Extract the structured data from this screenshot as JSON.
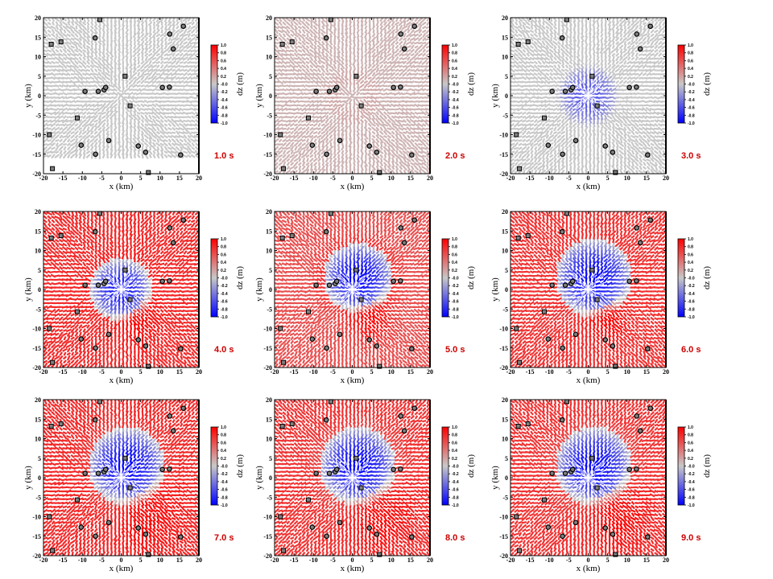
{
  "chart_data": {
    "type": "heatmap",
    "title": "",
    "description": "Snapshots of vertical ground displacement dz with horizontal displacement vectors at 9 time steps",
    "xlabel": "x (km)",
    "ylabel": "y (km)",
    "xlim": [
      -20,
      20
    ],
    "ylim": [
      -20,
      20
    ],
    "xticks": [
      "-20",
      "-15",
      "-10",
      "-5",
      "0",
      "5",
      "10",
      "15",
      "20"
    ],
    "yticks": [
      "20",
      "15",
      "10",
      "5",
      "0",
      "-5",
      "-10",
      "-15",
      "-20"
    ],
    "colorbar": {
      "label": "dz (m)",
      "range": [
        -1.0,
        1.0
      ],
      "ticks": [
        "1.0",
        "0.8",
        "0.6",
        "0.4",
        "0.2",
        "-0.0",
        "-0.2",
        "-0.4",
        "-0.6",
        "-0.8",
        "-1.0"
      ],
      "colors": {
        "max": "#ff0000",
        "mid": "#c8c8c8",
        "min": "#0000ff"
      }
    },
    "time_label_color": "#cc0000",
    "stations": {
      "squares": [
        [
          -5.5,
          19.5
        ],
        [
          -18.0,
          13.2
        ],
        [
          -15.5,
          13.8
        ],
        [
          1.0,
          5.0
        ],
        [
          2.3,
          -2.6
        ],
        [
          -11.3,
          -5.7
        ],
        [
          -18.5,
          -10.0
        ],
        [
          -17.7,
          -18.7
        ],
        [
          7.0,
          -19.7
        ]
      ],
      "circles": [
        [
          16.0,
          17.8
        ],
        [
          12.5,
          15.8
        ],
        [
          13.4,
          12.0
        ],
        [
          -6.7,
          14.8
        ],
        [
          -9.3,
          1.1
        ],
        [
          -5.9,
          1.1
        ],
        [
          -4.4,
          1.5
        ],
        [
          -4.0,
          2.1
        ],
        [
          10.6,
          2.1
        ],
        [
          12.4,
          2.2
        ],
        [
          -3.2,
          -11.5
        ],
        [
          -10.3,
          -12.7
        ],
        [
          -6.6,
          -15.0
        ],
        [
          4.4,
          -12.9
        ],
        [
          6.3,
          -14.5
        ],
        [
          15.3,
          -15.2
        ]
      ]
    },
    "panels": [
      {
        "time": "1.0 s",
        "center_dz": 0.0,
        "background_dz": 0.0,
        "subsidence_radius_km": 0,
        "ring_dz": 0.0,
        "south_lobe_dz": 0.0,
        "blank_bottom_km": -16
      },
      {
        "time": "2.0 s",
        "center_dz": 0.1,
        "background_dz": 0.1,
        "subsidence_radius_km": 0,
        "ring_dz": 0.15,
        "south_lobe_dz": 0.1,
        "blank_bottom_km": null
      },
      {
        "time": "3.0 s",
        "center_dz": -0.6,
        "background_dz": 0.0,
        "subsidence_radius_km": 8,
        "ring_dz": 0.0,
        "south_lobe_dz": 0.0,
        "blank_bottom_km": null
      },
      {
        "time": "4.0 s",
        "center_dz": -0.9,
        "background_dz": 0.8,
        "subsidence_radius_km": 8,
        "ring_dz": 0.9,
        "south_lobe_dz": 1.0,
        "blank_bottom_km": null
      },
      {
        "time": "5.0 s",
        "center_dz": -1.0,
        "background_dz": 0.6,
        "subsidence_radius_km": 9,
        "ring_dz": 0.9,
        "south_lobe_dz": 1.0,
        "blank_bottom_km": null
      },
      {
        "time": "6.0 s",
        "center_dz": -1.0,
        "background_dz": 0.75,
        "subsidence_radius_km": 10,
        "ring_dz": 0.8,
        "south_lobe_dz": 1.0,
        "blank_bottom_km": null
      },
      {
        "time": "7.0 s",
        "center_dz": -1.0,
        "background_dz": 0.8,
        "subsidence_radius_km": 10,
        "ring_dz": 0.7,
        "south_lobe_dz": 1.0,
        "blank_bottom_km": null
      },
      {
        "time": "8.0 s",
        "center_dz": -1.0,
        "background_dz": 0.75,
        "subsidence_radius_km": 10,
        "ring_dz": 0.6,
        "south_lobe_dz": 1.0,
        "blank_bottom_km": null
      },
      {
        "time": "9.0 s",
        "center_dz": -1.0,
        "background_dz": 0.75,
        "subsidence_radius_km": 10,
        "ring_dz": 0.6,
        "south_lobe_dz": 1.0,
        "blank_bottom_km": null
      }
    ]
  }
}
